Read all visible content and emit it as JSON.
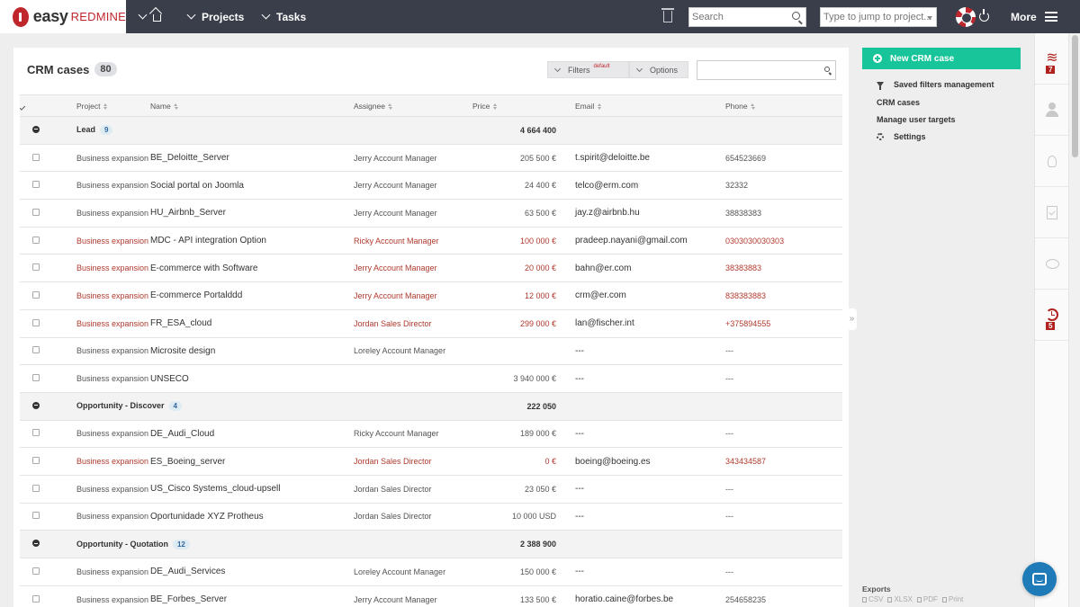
{
  "app": {
    "logo_easy": "easy",
    "logo_redmine": "REDMINE",
    "nav_projects": "Projects",
    "nav_tasks": "Tasks",
    "search_placeholder": "Search",
    "jump_placeholder": "Type to jump to project...",
    "more_label": "More"
  },
  "main": {
    "title": "CRM cases",
    "count": "80",
    "filters_label": "Filters",
    "filters_badge": "default",
    "options_label": "Options"
  },
  "table": {
    "headers": [
      "Project",
      "Name",
      "Assignee",
      "Price",
      "Email",
      "Phone"
    ],
    "groups": [
      {
        "label": "Lead",
        "count": "9",
        "total": "4 664 400",
        "rows": [
          {
            "project": "Business expansion",
            "name": "BE_Deloitte_Server",
            "assignee": "Jerry Account Manager",
            "price": "205 500 €",
            "email": "t.spirit@deloitte.be",
            "phone": "654523669",
            "overdue": false
          },
          {
            "project": "Business expansion",
            "name": "Social portal on Joomla",
            "assignee": "Jerry Account Manager",
            "price": "24 400 €",
            "email": "telco@erm.com",
            "phone": "32332",
            "overdue": false
          },
          {
            "project": "Business expansion",
            "name": "HU_Airbnb_Server",
            "assignee": "Jerry Account Manager",
            "price": "63 500 €",
            "email": "jay.z@airbnb.hu",
            "phone": "38838383",
            "overdue": false
          },
          {
            "project": "Business expansion",
            "name": "MDC - API integration Option",
            "assignee": "Ricky Account Manager",
            "price": "100 000 €",
            "email": "pradeep.nayani@gmail.com",
            "phone": "0303030030303",
            "overdue": true
          },
          {
            "project": "Business expansion",
            "name": "E-commerce with Software",
            "assignee": "Jerry Account Manager",
            "price": "20 000 €",
            "email": "bahn@er.com",
            "phone": "38383883",
            "overdue": true
          },
          {
            "project": "Business expansion",
            "name": "E-commerce Portalddd",
            "assignee": "Jerry Account Manager",
            "price": "12 000 €",
            "email": "crm@er.com",
            "phone": "838383883",
            "overdue": true
          },
          {
            "project": "Business expansion",
            "name": "FR_ESA_cloud",
            "assignee": "Jordan Sales Director",
            "price": "299 000 €",
            "email": "lan@fischer.int",
            "phone": "+375894555",
            "overdue": true
          },
          {
            "project": "Business expansion",
            "name": "Microsite design",
            "assignee": "Loreley Account Manager",
            "price": "",
            "email": "---",
            "phone": "---",
            "overdue": false
          },
          {
            "project": "Business expansion",
            "name": "UNSECO",
            "assignee": "",
            "price": "3 940 000 €",
            "email": "---",
            "phone": "---",
            "overdue": false
          }
        ]
      },
      {
        "label": "Opportunity - Discover",
        "count": "4",
        "total": "222 050",
        "rows": [
          {
            "project": "Business expansion",
            "name": "DE_Audi_Cloud",
            "assignee": "Ricky Account Manager",
            "price": "189 000 €",
            "email": "---",
            "phone": "---",
            "overdue": false
          },
          {
            "project": "Business expansion",
            "name": "ES_Boeing_server",
            "assignee": "Jordan Sales Director",
            "price": "0 €",
            "email": "boeing@boeing.es",
            "phone": "343434587",
            "overdue": true
          },
          {
            "project": "Business expansion",
            "name": "US_Cisco Systems_cloud-upsell",
            "assignee": "Jordan Sales Director",
            "price": "23 050 €",
            "email": "---",
            "phone": "---",
            "overdue": false
          },
          {
            "project": "Business expansion",
            "name": "Oportunidade XYZ Protheus",
            "assignee": "Jordan Sales Director",
            "price": "10 000 USD",
            "email": "---",
            "phone": "---",
            "overdue": false
          }
        ]
      },
      {
        "label": "Opportunity - Quotation",
        "count": "12",
        "total": "2 388 900",
        "rows": [
          {
            "project": "Business expansion",
            "name": "DE_Audi_Services",
            "assignee": "Loreley Account Manager",
            "price": "150 000 €",
            "email": "---",
            "phone": "---",
            "overdue": false
          },
          {
            "project": "Business expansion",
            "name": "BE_Forbes_Server",
            "assignee": "Jerry Account Manager",
            "price": "133 500 €",
            "email": "horatio.caine@forbes.be",
            "phone": "254658235",
            "overdue": false
          }
        ]
      }
    ]
  },
  "sidebar": {
    "new_button": "New CRM case",
    "saved_filters": "Saved filters management",
    "crm_cases": "CRM cases",
    "manage_targets": "Manage user targets",
    "settings": "Settings",
    "exports_title": "Exports",
    "exports": [
      "CSV",
      "XLSX",
      "PDF",
      "Print"
    ]
  },
  "rail": {
    "badge_top": "7",
    "badge_bottom": "5"
  },
  "colors": {
    "topbar": "#3a3e4a",
    "brand_red": "#c0272d",
    "accent_green": "#18c49a",
    "overdue_red": "#b03a2e"
  }
}
